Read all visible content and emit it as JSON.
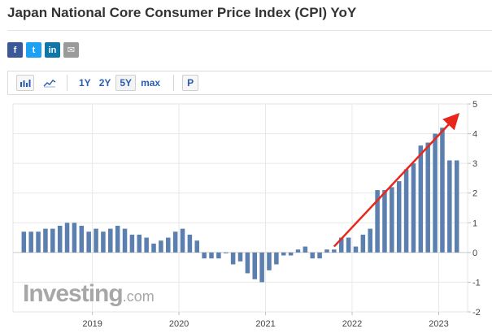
{
  "page": {
    "title": "Japan National Core Consumer Price Index (CPI) YoY",
    "share": [
      {
        "name": "facebook-share-button",
        "glyph": "f"
      },
      {
        "name": "twitter-share-button",
        "glyph": "t"
      },
      {
        "name": "linkedin-share-button",
        "glyph": "in"
      },
      {
        "name": "email-share-button",
        "glyph": "✉"
      }
    ],
    "toolbar": {
      "ranges": [
        "1Y",
        "2Y",
        "5Y",
        "max"
      ],
      "active_range": "5Y",
      "p_label": "P"
    },
    "watermark": {
      "brand": "Investing",
      "suffix": ".com"
    }
  },
  "colors": {
    "bar": "#5b7fae",
    "grid": "#e8e8e8",
    "axis_text": "#444444",
    "arrow": "#e8271c",
    "active": "#2a5db0"
  },
  "chart_data": {
    "type": "bar",
    "title": "Japan National Core Consumer Price Index (CPI) YoY",
    "xlabel": "",
    "ylabel": "",
    "ylim": [
      -2,
      5
    ],
    "y_ticks": [
      5,
      4,
      3,
      2,
      1,
      0,
      -1,
      -2
    ],
    "y_axis_side": "right",
    "x_tick_labels": [
      "2019",
      "2020",
      "2021",
      "2022",
      "2023"
    ],
    "x_tick_dates": [
      "2019-01",
      "2020-01",
      "2021-01",
      "2022-01",
      "2023-01"
    ],
    "grid": true,
    "series": [
      {
        "x": [
          "2018-03",
          "2018-04",
          "2018-05",
          "2018-06",
          "2018-07",
          "2018-08",
          "2018-09",
          "2018-10",
          "2018-11",
          "2018-12",
          "2019-01",
          "2019-02",
          "2019-03",
          "2019-04",
          "2019-05",
          "2019-06",
          "2019-07",
          "2019-08",
          "2019-09",
          "2019-10",
          "2019-11",
          "2019-12",
          "2020-01",
          "2020-02",
          "2020-03",
          "2020-04",
          "2020-05",
          "2020-06",
          "2020-07",
          "2020-08",
          "2020-09",
          "2020-10",
          "2020-11",
          "2020-12",
          "2021-01",
          "2021-02",
          "2021-03",
          "2021-04",
          "2021-05",
          "2021-06",
          "2021-07",
          "2021-08",
          "2021-09",
          "2021-10",
          "2021-11",
          "2021-12",
          "2022-01",
          "2022-02",
          "2022-03",
          "2022-04",
          "2022-05",
          "2022-06",
          "2022-07",
          "2022-08",
          "2022-09",
          "2022-10",
          "2022-11",
          "2022-12",
          "2023-01",
          "2023-02",
          "2023-03"
        ],
        "values": [
          0.7,
          0.7,
          0.7,
          0.8,
          0.8,
          0.9,
          1.0,
          1.0,
          0.9,
          0.7,
          0.8,
          0.7,
          0.8,
          0.9,
          0.8,
          0.6,
          0.6,
          0.5,
          0.3,
          0.4,
          0.5,
          0.7,
          0.8,
          0.6,
          0.4,
          -0.2,
          -0.2,
          -0.2,
          0.0,
          -0.4,
          -0.3,
          -0.7,
          -0.9,
          -1.0,
          -0.6,
          -0.4,
          -0.1,
          -0.1,
          0.1,
          0.2,
          -0.2,
          -0.2,
          0.1,
          0.1,
          0.5,
          0.5,
          0.2,
          0.6,
          0.8,
          2.1,
          2.1,
          2.2,
          2.4,
          2.8,
          3.0,
          3.6,
          3.7,
          4.0,
          4.2,
          3.1,
          3.1
        ]
      }
    ],
    "annotations": [
      {
        "type": "arrow",
        "color": "#e8271c",
        "from": [
          "2021-10",
          0.2
        ],
        "to": [
          "2023-03",
          4.6
        ]
      }
    ]
  }
}
